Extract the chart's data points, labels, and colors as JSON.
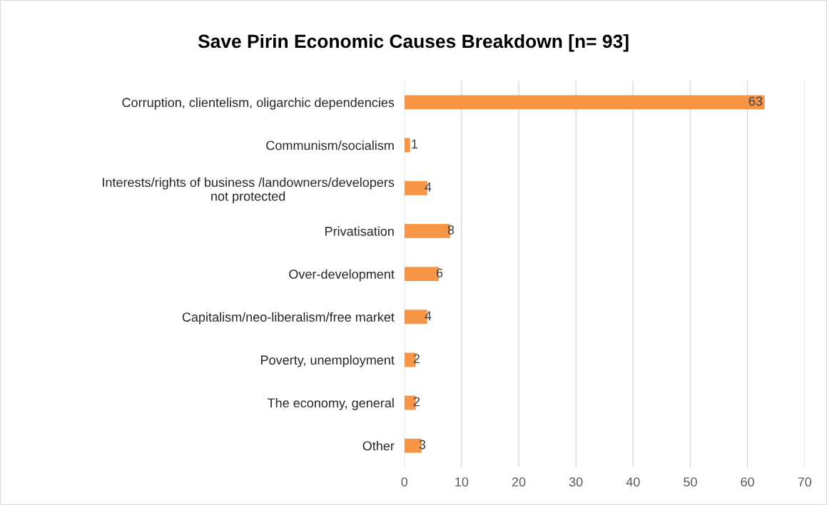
{
  "chart_data": {
    "type": "bar",
    "orientation": "horizontal",
    "title": "Save Pirin Economic Causes Breakdown [n= 93]",
    "categories": [
      "Corruption, clientelism, oligarchic dependencies",
      "Communism/socialism",
      "Interests/rights of business /landowners/developers\nnot protected",
      "Privatisation",
      "Over-development",
      "Capitalism/neo-liberalism/free market",
      "Poverty, unemployment",
      "The economy, general",
      "Other"
    ],
    "values": [
      63,
      1,
      4,
      8,
      6,
      4,
      2,
      2,
      3
    ],
    "color": "#f79646",
    "xlim": [
      0,
      70
    ],
    "xticks": [
      0,
      10,
      20,
      30,
      40,
      50,
      60,
      70
    ],
    "grid": "x",
    "data_labels": true,
    "legend": false
  }
}
